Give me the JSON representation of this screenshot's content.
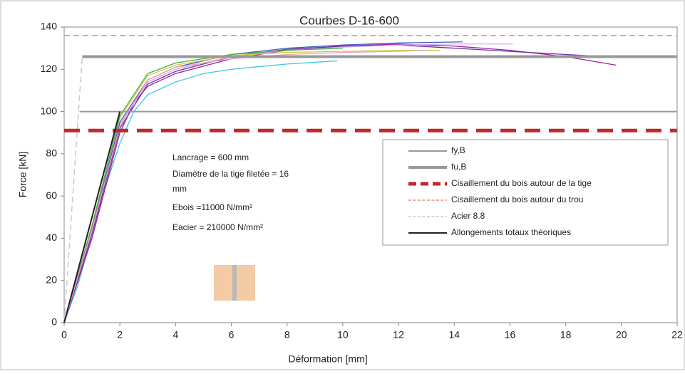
{
  "chart_data": {
    "type": "line",
    "title": "Courbes D-16-600",
    "xlabel": "Déformation [mm]",
    "ylabel": "Force [kN]",
    "xlim": [
      0,
      22
    ],
    "xticks": [
      0,
      2,
      4,
      6,
      8,
      10,
      12,
      14,
      16,
      18,
      20,
      22
    ],
    "ylim": [
      0,
      140
    ],
    "yticks": [
      0,
      20,
      40,
      60,
      80,
      100,
      120,
      140
    ],
    "grid": false,
    "legend": "right",
    "annotations": [
      "Lancrage = 600 mm",
      "Diamètre de la tige filetée = 16",
      "mm",
      "Ebois =11000 N/mm²",
      "Eacier = 210000 N/mm²"
    ],
    "series": [
      {
        "color": "#3ec6e0",
        "width": 1.3,
        "x": [
          0,
          0.5,
          1,
          1.5,
          2,
          2.5,
          3,
          4,
          5,
          6,
          8,
          9.8
        ],
        "values": [
          0,
          18,
          42,
          65,
          85,
          100,
          108,
          114,
          118,
          120,
          122.5,
          124
        ]
      },
      {
        "color": "#a020a0",
        "width": 1.3,
        "x": [
          0,
          1,
          2,
          2.5,
          3,
          4,
          6,
          8,
          10,
          12,
          14,
          16,
          18,
          19.8
        ],
        "values": [
          0,
          40,
          90,
          104,
          112,
          118,
          125,
          129,
          131,
          132,
          131,
          129,
          126,
          122
        ]
      },
      {
        "color": "#7030a0",
        "width": 1.3,
        "x": [
          0,
          1,
          2,
          3,
          4,
          6,
          8,
          10,
          12,
          14,
          16,
          18,
          19.5
        ],
        "values": [
          0,
          42,
          92,
          113,
          119,
          126,
          129.5,
          131,
          131.5,
          130,
          128.5,
          127,
          126
        ]
      },
      {
        "color": "#d8a8f0",
        "width": 1.3,
        "x": [
          0,
          1,
          2,
          3,
          4,
          6,
          8,
          10,
          12,
          14,
          16.1
        ],
        "values": [
          0,
          44,
          94,
          114,
          120,
          126,
          129,
          130.5,
          131.5,
          132,
          132
        ]
      },
      {
        "color": "#4060c0",
        "width": 1.3,
        "x": [
          0,
          1,
          2,
          3,
          4,
          6,
          8,
          10,
          12,
          14.3
        ],
        "values": [
          0,
          45,
          95,
          115,
          121,
          127,
          130,
          131.5,
          132.5,
          133
        ]
      },
      {
        "color": "#d8c840",
        "width": 1.3,
        "x": [
          0,
          1,
          2,
          3,
          4,
          6,
          8,
          10,
          12,
          13.5
        ],
        "values": [
          0,
          46,
          97,
          117,
          122,
          126.5,
          128,
          128.5,
          129,
          129
        ]
      },
      {
        "color": "#40b040",
        "width": 1.3,
        "x": [
          0,
          1,
          2,
          3,
          4,
          6,
          8,
          10
        ],
        "values": [
          0,
          46,
          98,
          118,
          123,
          127,
          129,
          130
        ]
      },
      {
        "color": "#f0a0c0",
        "width": 1.3,
        "x": [
          0,
          1,
          2,
          3,
          4,
          6,
          8,
          10,
          12,
          13
        ],
        "values": [
          0,
          44,
          93,
          115,
          121,
          125,
          127,
          128,
          128.5,
          129
        ]
      },
      {
        "name": "fy,B",
        "color": "#999999",
        "width": 2,
        "x": [
          0.55,
          22
        ],
        "values": [
          100,
          100
        ]
      },
      {
        "name": "fu,B",
        "color": "#999999",
        "width": 4,
        "x": [
          0.65,
          22
        ],
        "values": [
          126,
          126
        ]
      },
      {
        "name": "Cisaillement du bois autour de la tige",
        "color": "#c0282c",
        "width": 5,
        "dash": "22 12",
        "x": [
          0,
          22
        ],
        "values": [
          91,
          91
        ]
      },
      {
        "name": "Cisaillement du bois autour du trou",
        "color": "#e07060",
        "width": 1.3,
        "dash": "8 5",
        "x": [
          0,
          22
        ],
        "values": [
          136,
          136
        ]
      },
      {
        "name": "Acier 8.8",
        "color": "#c8c8c8",
        "width": 1.5,
        "dash": "8 5",
        "x": [
          0,
          0.65
        ],
        "values": [
          0,
          126
        ]
      },
      {
        "name": "Allongements totaux théoriques",
        "color": "#222222",
        "width": 2,
        "x": [
          0,
          2
        ],
        "values": [
          0,
          100
        ]
      }
    ]
  }
}
